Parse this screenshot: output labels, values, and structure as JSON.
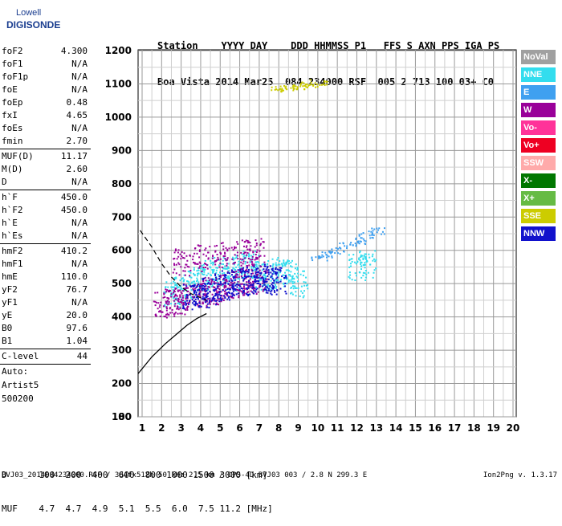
{
  "logo": {
    "line1": "Lowell",
    "line2": "DIGISONDE"
  },
  "header": {
    "line1": "Station    YYYY DAY    DDD HHMMSS P1   FFS S AXN PPS IGA PS",
    "line2": "Boa Vista 2014 Mar25  084 234000 RSF  005 2 713 100 03+ C0"
  },
  "params": {
    "group1": [
      {
        "label": "foF2",
        "value": "4.300"
      },
      {
        "label": "foF1",
        "value": "N/A"
      },
      {
        "label": "foF1p",
        "value": "N/A"
      },
      {
        "label": "foE",
        "value": "N/A"
      },
      {
        "label": "foEp",
        "value": "0.48"
      },
      {
        "label": "fxI",
        "value": "4.65"
      },
      {
        "label": "foEs",
        "value": "N/A"
      },
      {
        "label": "fmin",
        "value": "2.70"
      }
    ],
    "group2": [
      {
        "label": "MUF(D)",
        "value": "11.17"
      },
      {
        "label": "M(D)",
        "value": "2.60"
      },
      {
        "label": "D",
        "value": "N/A"
      }
    ],
    "group3": [
      {
        "label": "h`F",
        "value": "450.0"
      },
      {
        "label": "h`F2",
        "value": "450.0"
      },
      {
        "label": "h`E",
        "value": "N/A"
      },
      {
        "label": "h`Es",
        "value": "N/A"
      }
    ],
    "group4": [
      {
        "label": "hmF2",
        "value": "410.2"
      },
      {
        "label": "hmF1",
        "value": "N/A"
      },
      {
        "label": "hmE",
        "value": "110.0"
      },
      {
        "label": "yF2",
        "value": "76.7"
      },
      {
        "label": "yF1",
        "value": "N/A"
      },
      {
        "label": "yE",
        "value": "20.0"
      },
      {
        "label": "B0",
        "value": "97.6"
      },
      {
        "label": "B1",
        "value": "1.04"
      }
    ],
    "clevel": {
      "label": "C-level",
      "value": "44"
    },
    "auto": [
      "Auto:",
      "Artist5",
      "500200"
    ]
  },
  "legend": [
    {
      "label": "NoVal",
      "color": "#a0a0a0"
    },
    {
      "label": "NNE",
      "color": "#33ddee"
    },
    {
      "label": "E",
      "color": "#3fa0f0"
    },
    {
      "label": "W",
      "color": "#990099"
    },
    {
      "label": "Vo-",
      "color": "#ff3399"
    },
    {
      "label": "Vo+",
      "color": "#ee0022"
    },
    {
      "label": "SSW",
      "color": "#ffaaaa"
    },
    {
      "label": "X-",
      "color": "#007700"
    },
    {
      "label": "X+",
      "color": "#66bb44"
    },
    {
      "label": "SSE",
      "color": "#cccc00"
    },
    {
      "label": "NNW",
      "color": "#1111cc"
    }
  ],
  "bottom": {
    "line1": "D      100  200  400  600  800 1000 1500 3000 [km]",
    "line2": "MUF    4.7  4.7  4.9  5.1  5.5  6.0  7.5 11.2 [MHz]"
  },
  "footer": {
    "left": "BVJ03_2014084234000.RSF / 384fx512h 50 kHz 2.5 km / DPS-4D BVJ03 003 / 2.8 N 299.3 E",
    "right": "Ion2Png v. 1.3.17"
  },
  "chart_data": {
    "type": "scatter",
    "x_ticks": [
      1,
      2,
      3,
      4,
      5,
      6,
      7,
      8,
      9,
      10,
      11,
      12,
      13,
      14,
      15,
      16,
      17,
      18,
      19,
      20
    ],
    "y_ticks": [
      80,
      100,
      200,
      300,
      400,
      500,
      600,
      700,
      800,
      900,
      1000,
      1100,
      1200
    ],
    "xlim": [
      0.7,
      20.5
    ],
    "ylim": [
      80,
      1200
    ],
    "grid": true,
    "legend_position": "right",
    "traces": [
      {
        "name": "NNE",
        "color": "#33ddee",
        "x": [
          2.5,
          3.0,
          3.5,
          4.0,
          4.5,
          5.0,
          5.5,
          6.0,
          6.5,
          7.0,
          7.5,
          8.0,
          8.5,
          9.0,
          12.0,
          12.5
        ],
        "y": [
          470,
          480,
          500,
          520,
          530,
          540,
          520,
          550,
          560,
          530,
          520,
          540,
          530,
          500,
          550,
          560
        ]
      },
      {
        "name": "E",
        "color": "#3fa0f0",
        "x": [
          10.0,
          10.5,
          11.0,
          11.5,
          12.0,
          12.5,
          13.0
        ],
        "y": [
          580,
          590,
          600,
          615,
          630,
          645,
          660
        ]
      },
      {
        "name": "W",
        "color": "#990099",
        "x": [
          2.0,
          2.5,
          3.0,
          3.5,
          4.0,
          4.5,
          5.0,
          5.5,
          6.0,
          6.5,
          7.0,
          3.0,
          4.0,
          5.0,
          6.0,
          6.8
        ],
        "y": [
          440,
          445,
          450,
          460,
          470,
          480,
          490,
          500,
          505,
          510,
          520,
          565,
          580,
          590,
          595,
          600
        ]
      },
      {
        "name": "SSE",
        "color": "#cccc00",
        "x": [
          8.0,
          8.5,
          9.0,
          9.5,
          10.0
        ],
        "y": [
          1085,
          1088,
          1092,
          1098,
          1105
        ]
      },
      {
        "name": "NNW",
        "color": "#1111cc",
        "x": [
          3.5,
          4.0,
          4.5,
          5.0,
          5.5,
          6.0,
          6.5,
          7.0,
          7.5,
          8.0
        ],
        "y": [
          460,
          470,
          480,
          490,
          500,
          505,
          510,
          520,
          515,
          510
        ]
      }
    ],
    "profile_solid": {
      "x": [
        0.8,
        1.5,
        2.2,
        2.8,
        3.3,
        3.8,
        4.3
      ],
      "y": [
        230,
        280,
        320,
        350,
        375,
        395,
        410
      ]
    },
    "profile_dashed": {
      "x": [
        0.9,
        1.5,
        2.0,
        2.5,
        3.0,
        3.5,
        4.3
      ],
      "y": [
        660,
        610,
        560,
        520,
        490,
        470,
        450
      ]
    }
  }
}
